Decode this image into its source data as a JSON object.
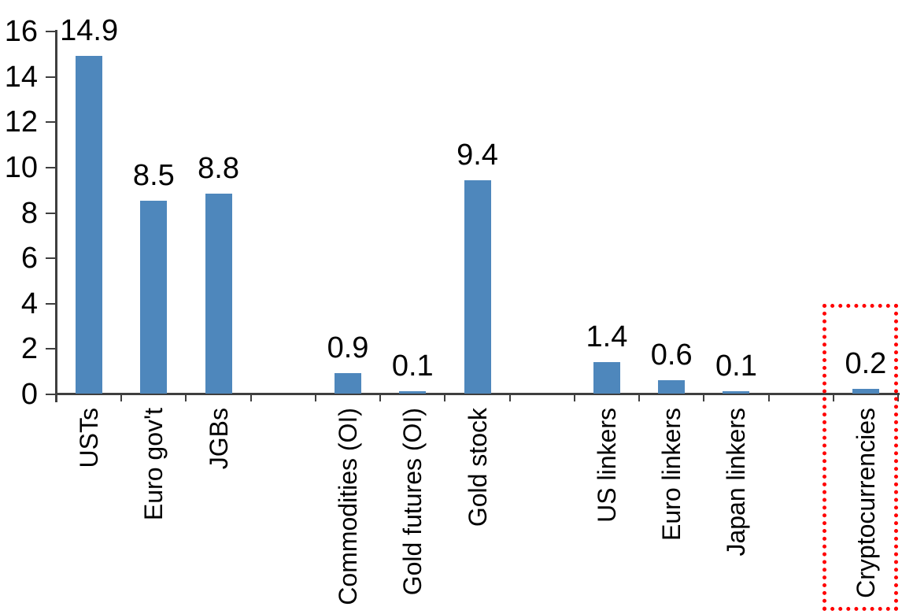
{
  "chart_data": {
    "type": "bar",
    "title": "",
    "xlabel": "",
    "ylabel": "",
    "categories": [
      "USTs",
      "Euro gov't",
      "JGBs",
      "",
      "Commodities (OI)",
      "Gold futures (OI)",
      "Gold stock",
      "",
      "US linkers",
      "Euro linkers",
      "Japan linkers",
      "",
      "Cryptocurrencies"
    ],
    "values": [
      14.9,
      8.5,
      8.8,
      null,
      0.9,
      0.1,
      9.4,
      null,
      1.4,
      0.6,
      0.1,
      null,
      0.2
    ],
    "data_labels": [
      "14.9",
      "8.5",
      "8.8",
      "",
      "0.9",
      "0.1",
      "9.4",
      "",
      "1.4",
      "0.6",
      "0.1",
      "",
      "0.2"
    ],
    "ylim": [
      0,
      16
    ],
    "yticks": [
      0,
      2,
      4,
      6,
      8,
      10,
      12,
      14,
      16
    ],
    "grid": false,
    "legend": false,
    "bar_color": "#4E87BC",
    "axis_color": "#3F3F3F",
    "text_color": "#000000",
    "annotation": {
      "type": "dotted-rectangle",
      "color": "#FF0000",
      "highlighted_category": "Cryptocurrencies"
    }
  }
}
